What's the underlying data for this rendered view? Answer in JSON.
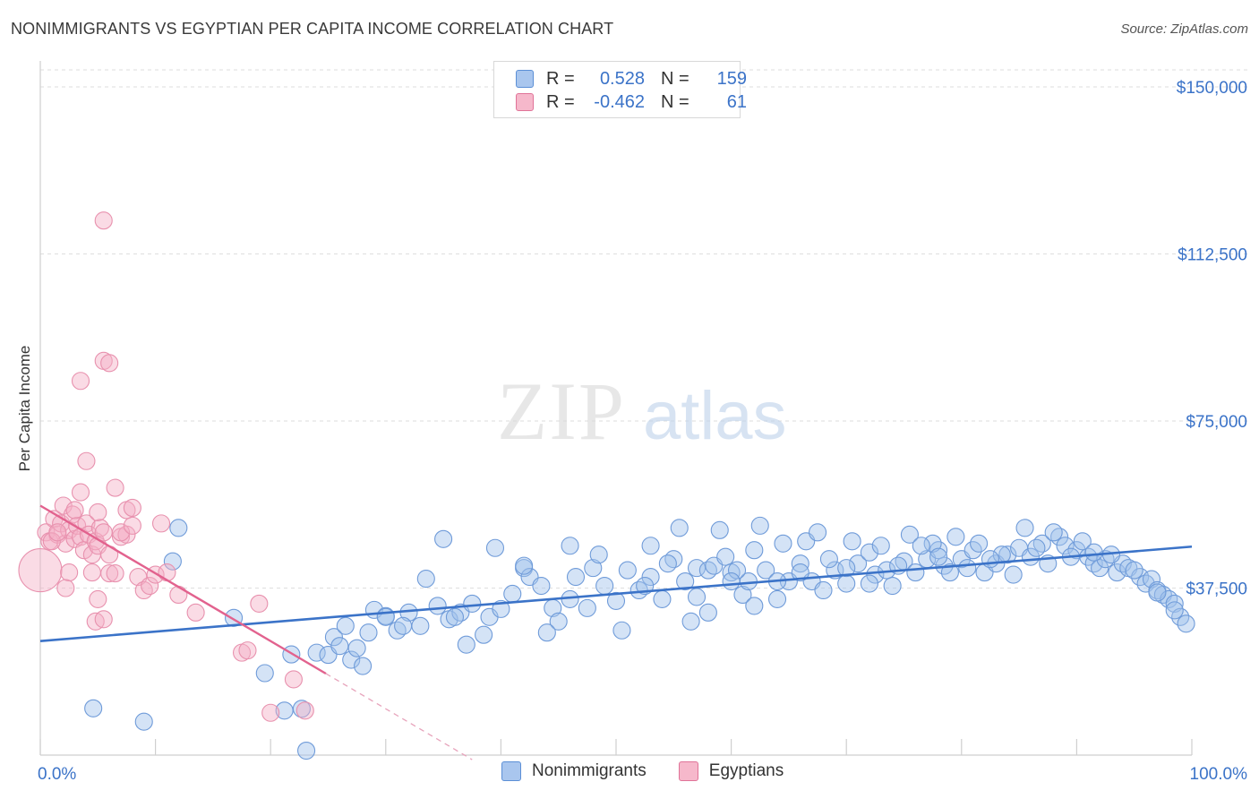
{
  "title": "NONIMMIGRANTS VS EGYPTIAN PER CAPITA INCOME CORRELATION CHART",
  "source": "Source: ZipAtlas.com",
  "watermark": {
    "zip": "ZIP",
    "atlas": "atlas"
  },
  "legend_top": {
    "rows": [
      {
        "r_label": "R =",
        "r_value": "0.528",
        "n_label": "N =",
        "n_value": "159",
        "color": "#a9c6ee",
        "border": "#5b8fd6"
      },
      {
        "r_label": "R =",
        "r_value": "-0.462",
        "n_label": "N =",
        "n_value": "61",
        "color": "#f6b8cb",
        "border": "#e07398"
      }
    ]
  },
  "legend_bottom": [
    {
      "label": "Nonimmigrants",
      "color": "#a9c6ee",
      "border": "#5b8fd6"
    },
    {
      "label": "Egyptians",
      "color": "#f6b8cb",
      "border": "#e07398"
    }
  ],
  "colors": {
    "blue": "#3b73c8",
    "blue_fill": "rgba(160,192,236,0.45)",
    "blue_stroke": "#6f9bd9",
    "pink": "#e2628e",
    "pink_fill": "rgba(245,175,198,0.45)",
    "pink_stroke": "#e891ae",
    "grid": "#dedede",
    "tick_label": "#3b73c8"
  },
  "chart_data": {
    "type": "scatter",
    "xlabel": "",
    "ylabel": "Per Capita Income",
    "xlim": [
      0,
      100
    ],
    "ylim": [
      0,
      150000
    ],
    "x_tick_labels": [
      {
        "value": 0,
        "label": "0.0%"
      },
      {
        "value": 100,
        "label": "100.0%"
      }
    ],
    "y_ticks": [
      {
        "value": 37500,
        "label": "$37,500"
      },
      {
        "value": 75000,
        "label": "$75,000"
      },
      {
        "value": 112500,
        "label": "$112,500"
      },
      {
        "value": 150000,
        "label": "$150,000"
      }
    ],
    "x_minor_ticks": [
      0,
      10,
      20,
      30,
      40,
      50,
      60,
      70,
      80,
      90,
      100
    ],
    "grid": true,
    "legend_position": "top-center",
    "series": [
      {
        "name": "Nonimmigrants",
        "color": "#6f9bd9",
        "trend": {
          "x": [
            0,
            100
          ],
          "y": [
            25600,
            46800
          ],
          "style": "solid"
        },
        "points": [
          [
            4.6,
            10500
          ],
          [
            9.0,
            7500
          ],
          [
            12.0,
            51000
          ],
          [
            11.5,
            43500
          ],
          [
            16.8,
            30800
          ],
          [
            19.5,
            18400
          ],
          [
            21.2,
            10000
          ],
          [
            22.7,
            10400
          ],
          [
            23.1,
            1000
          ],
          [
            21.8,
            22600
          ],
          [
            24.0,
            23000
          ],
          [
            25.0,
            22500
          ],
          [
            25.5,
            26500
          ],
          [
            26.0,
            24500
          ],
          [
            27.0,
            21400
          ],
          [
            27.5,
            24000
          ],
          [
            28.0,
            20000
          ],
          [
            29.0,
            32600
          ],
          [
            30.0,
            31200
          ],
          [
            31.0,
            28000
          ],
          [
            32.0,
            32000
          ],
          [
            33.5,
            39600
          ],
          [
            34.5,
            33500
          ],
          [
            35.5,
            30500
          ],
          [
            36.5,
            32000
          ],
          [
            37.0,
            24800
          ],
          [
            37.5,
            34000
          ],
          [
            38.5,
            27000
          ],
          [
            39.0,
            31000
          ],
          [
            40.0,
            32800
          ],
          [
            41.0,
            36200
          ],
          [
            42.0,
            42000
          ],
          [
            42.5,
            40000
          ],
          [
            43.5,
            38000
          ],
          [
            44.5,
            33000
          ],
          [
            45.0,
            30000
          ],
          [
            46.0,
            47000
          ],
          [
            47.5,
            33000
          ],
          [
            48.0,
            42000
          ],
          [
            49.0,
            38000
          ],
          [
            50.0,
            34600
          ],
          [
            51.0,
            41500
          ],
          [
            52.0,
            37000
          ],
          [
            53.0,
            40000
          ],
          [
            54.0,
            35000
          ],
          [
            55.0,
            44000
          ],
          [
            56.0,
            39000
          ],
          [
            57.0,
            42000
          ],
          [
            58.0,
            41500
          ],
          [
            58.5,
            42500
          ],
          [
            59.5,
            44500
          ],
          [
            60.0,
            41000
          ],
          [
            61.0,
            36000
          ],
          [
            61.5,
            39000
          ],
          [
            62.0,
            46000
          ],
          [
            63.0,
            41500
          ],
          [
            64.0,
            35000
          ],
          [
            65.0,
            39000
          ],
          [
            66.0,
            43000
          ],
          [
            66.5,
            48000
          ],
          [
            67.0,
            39000
          ],
          [
            68.0,
            37000
          ],
          [
            69.0,
            41500
          ],
          [
            70.0,
            38500
          ],
          [
            71.0,
            43000
          ],
          [
            72.0,
            45500
          ],
          [
            72.5,
            40500
          ],
          [
            73.5,
            41500
          ],
          [
            74.0,
            38000
          ],
          [
            75.0,
            43500
          ],
          [
            76.0,
            41000
          ],
          [
            77.0,
            44000
          ],
          [
            78.0,
            46000
          ],
          [
            78.5,
            42500
          ],
          [
            79.0,
            41000
          ],
          [
            80.0,
            44000
          ],
          [
            81.0,
            46000
          ],
          [
            82.0,
            41000
          ],
          [
            83.0,
            43000
          ],
          [
            84.0,
            45000
          ],
          [
            85.0,
            46500
          ],
          [
            86.0,
            44500
          ],
          [
            87.0,
            47500
          ],
          [
            87.5,
            43000
          ],
          [
            88.5,
            49000
          ],
          [
            89.0,
            47000
          ],
          [
            90.0,
            46000
          ],
          [
            91.0,
            44500
          ],
          [
            91.5,
            43000
          ],
          [
            92.0,
            42000
          ],
          [
            92.5,
            44000
          ],
          [
            93.5,
            41000
          ],
          [
            94.0,
            43000
          ],
          [
            94.5,
            42000
          ],
          [
            95.5,
            40000
          ],
          [
            96.0,
            38500
          ],
          [
            96.5,
            39500
          ],
          [
            97.0,
            37000
          ],
          [
            97.5,
            36000
          ],
          [
            98.0,
            35000
          ],
          [
            98.5,
            34000
          ],
          [
            99.0,
            31000
          ],
          [
            99.5,
            29500
          ],
          [
            53.0,
            47000
          ],
          [
            55.5,
            51000
          ],
          [
            57.0,
            35500
          ],
          [
            59.0,
            50500
          ],
          [
            60.5,
            41500
          ],
          [
            62.5,
            51500
          ],
          [
            64.5,
            47500
          ],
          [
            67.5,
            50000
          ],
          [
            70.5,
            48000
          ],
          [
            73.0,
            47000
          ],
          [
            75.5,
            49500
          ],
          [
            77.5,
            47500
          ],
          [
            79.5,
            49000
          ],
          [
            81.5,
            47500
          ],
          [
            83.5,
            45000
          ],
          [
            85.5,
            51000
          ],
          [
            88.0,
            50000
          ],
          [
            90.5,
            48000
          ],
          [
            93.0,
            45000
          ],
          [
            46.5,
            40000
          ],
          [
            48.5,
            45000
          ],
          [
            50.5,
            28000
          ],
          [
            52.5,
            38000
          ],
          [
            54.5,
            43000
          ],
          [
            56.5,
            30000
          ],
          [
            58.0,
            32000
          ],
          [
            60.0,
            39000
          ],
          [
            62.0,
            33500
          ],
          [
            64.0,
            39000
          ],
          [
            66.0,
            41000
          ],
          [
            68.5,
            44000
          ],
          [
            70.0,
            42000
          ],
          [
            72.0,
            38500
          ],
          [
            74.5,
            42500
          ],
          [
            76.5,
            47000
          ],
          [
            78.0,
            44500
          ],
          [
            80.5,
            42000
          ],
          [
            82.5,
            44000
          ],
          [
            84.5,
            40500
          ],
          [
            86.5,
            46500
          ],
          [
            89.5,
            44500
          ],
          [
            91.5,
            45500
          ],
          [
            95.0,
            41500
          ],
          [
            97.0,
            36500
          ],
          [
            98.5,
            32500
          ],
          [
            42.0,
            42500
          ],
          [
            44.0,
            27500
          ],
          [
            39.5,
            46500
          ],
          [
            35.0,
            48500
          ],
          [
            31.5,
            29000
          ],
          [
            28.5,
            27500
          ],
          [
            26.5,
            29000
          ],
          [
            30.0,
            31000
          ],
          [
            33.0,
            29000
          ],
          [
            36.0,
            31000
          ],
          [
            46.0,
            35000
          ]
        ]
      },
      {
        "name": "Egyptians",
        "color": "#e891ae",
        "trend": {
          "x": [
            0,
            24.8
          ],
          "y": [
            56000,
            18300
          ],
          "style": "solid",
          "dashed_extension_to_x": 37.5
        },
        "points": [
          [
            0.0,
            41500
          ],
          [
            0.5,
            50000
          ],
          [
            0.8,
            48000
          ],
          [
            1.2,
            53000
          ],
          [
            1.5,
            49500
          ],
          [
            1.8,
            52000
          ],
          [
            2.0,
            56000
          ],
          [
            2.2,
            47500
          ],
          [
            2.5,
            50500
          ],
          [
            2.8,
            54000
          ],
          [
            3.0,
            48500
          ],
          [
            3.2,
            51500
          ],
          [
            3.5,
            49000
          ],
          [
            3.8,
            46000
          ],
          [
            4.0,
            52000
          ],
          [
            4.2,
            49500
          ],
          [
            4.5,
            45000
          ],
          [
            4.8,
            48000
          ],
          [
            5.0,
            47000
          ],
          [
            5.2,
            51000
          ],
          [
            1.0,
            48000
          ],
          [
            1.5,
            50000
          ],
          [
            2.5,
            41000
          ],
          [
            3.0,
            55000
          ],
          [
            3.5,
            59000
          ],
          [
            4.0,
            66000
          ],
          [
            4.5,
            41000
          ],
          [
            5.0,
            54500
          ],
          [
            5.5,
            50000
          ],
          [
            6.0,
            40800
          ],
          [
            6.5,
            40800
          ],
          [
            7.0,
            49000
          ],
          [
            7.5,
            49500
          ],
          [
            3.5,
            84000
          ],
          [
            5.5,
            88500
          ],
          [
            6.0,
            88000
          ],
          [
            5.5,
            120000
          ],
          [
            4.8,
            30000
          ],
          [
            5.0,
            35000
          ],
          [
            5.5,
            30500
          ],
          [
            6.0,
            45000
          ],
          [
            7.0,
            50000
          ],
          [
            7.5,
            55000
          ],
          [
            8.0,
            55500
          ],
          [
            8.5,
            40000
          ],
          [
            9.0,
            37000
          ],
          [
            9.5,
            38000
          ],
          [
            10.0,
            40500
          ],
          [
            10.5,
            52000
          ],
          [
            11.0,
            41000
          ],
          [
            12.0,
            36000
          ],
          [
            13.5,
            32000
          ],
          [
            17.5,
            23000
          ],
          [
            18.0,
            23500
          ],
          [
            19.0,
            34000
          ],
          [
            20.0,
            9500
          ],
          [
            22.0,
            17000
          ],
          [
            23.0,
            10000
          ],
          [
            8.0,
            51500
          ],
          [
            6.5,
            60000
          ],
          [
            2.2,
            37500
          ]
        ]
      }
    ]
  }
}
